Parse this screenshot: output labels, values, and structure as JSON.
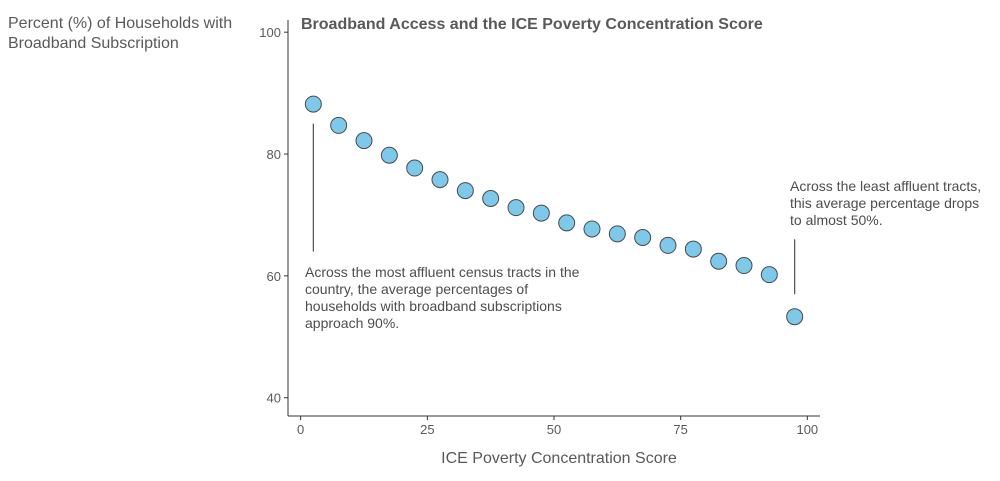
{
  "chart_data": {
    "type": "scatter",
    "title": "Broadband Access and the ICE Poverty Concentration Score",
    "xlabel": "ICE Poverty Concentration Score",
    "ylabel_lines": [
      "Percent (%) of Households with",
      "Broadband Subscription"
    ],
    "xlim": [
      -2.5,
      102.5
    ],
    "ylim": [
      37,
      102
    ],
    "x_ticks": [
      0,
      25,
      50,
      75,
      100
    ],
    "y_ticks": [
      40,
      60,
      80,
      100
    ],
    "grid": false,
    "point_color": "#7ec8ea",
    "point_stroke": "#4a4a4a",
    "x": [
      2.5,
      7.5,
      12.5,
      17.5,
      22.5,
      27.5,
      32.5,
      37.5,
      42.5,
      47.5,
      52.5,
      57.5,
      62.5,
      67.5,
      72.5,
      77.5,
      82.5,
      87.5,
      92.5,
      97.5
    ],
    "values": [
      88.2,
      84.7,
      82.2,
      79.8,
      77.7,
      75.8,
      74.0,
      72.7,
      71.2,
      70.3,
      68.7,
      67.7,
      66.9,
      66.3,
      65.0,
      64.4,
      62.4,
      61.7,
      60.2,
      53.3
    ],
    "annotations": [
      {
        "lines": [
          "Across the most affluent census tracts in the",
          "country, the average percentages of",
          "households with broadband subscriptions",
          "approach 90%."
        ],
        "line_x": 2.5,
        "line_y": [
          85,
          64
        ]
      },
      {
        "lines": [
          "Across the least affluent tracts,",
          "this average percentage drops",
          "to almost 50%."
        ],
        "line_x": 97.5,
        "line_y": [
          66,
          57
        ]
      }
    ]
  }
}
